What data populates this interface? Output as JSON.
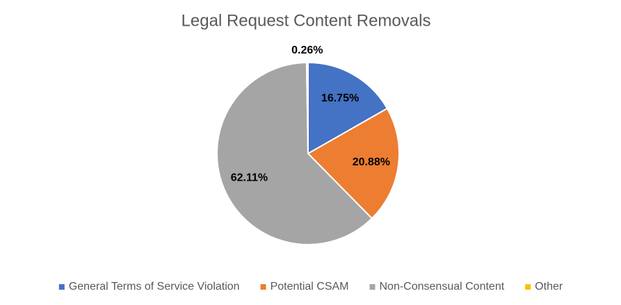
{
  "chart_data": {
    "type": "pie",
    "title": "Legal Request Content Removals",
    "series": [
      {
        "name": "General Terms of Service Violation",
        "color": "#4472c4",
        "values": [
          16.75
        ],
        "value_labels": [
          "16.75%"
        ]
      },
      {
        "name": "Potential CSAM",
        "color": "#ed7d31",
        "values": [
          20.88
        ],
        "value_labels": [
          "20.88%"
        ]
      },
      {
        "name": "Non-Consensual Content",
        "color": "#a5a5a5",
        "values": [
          62.11
        ],
        "value_labels": [
          "62.11%"
        ]
      },
      {
        "name": "Other",
        "color": "#ffc000",
        "values": [
          0.26
        ],
        "value_labels": [
          "0.26%"
        ]
      }
    ],
    "legend": "bottom"
  }
}
